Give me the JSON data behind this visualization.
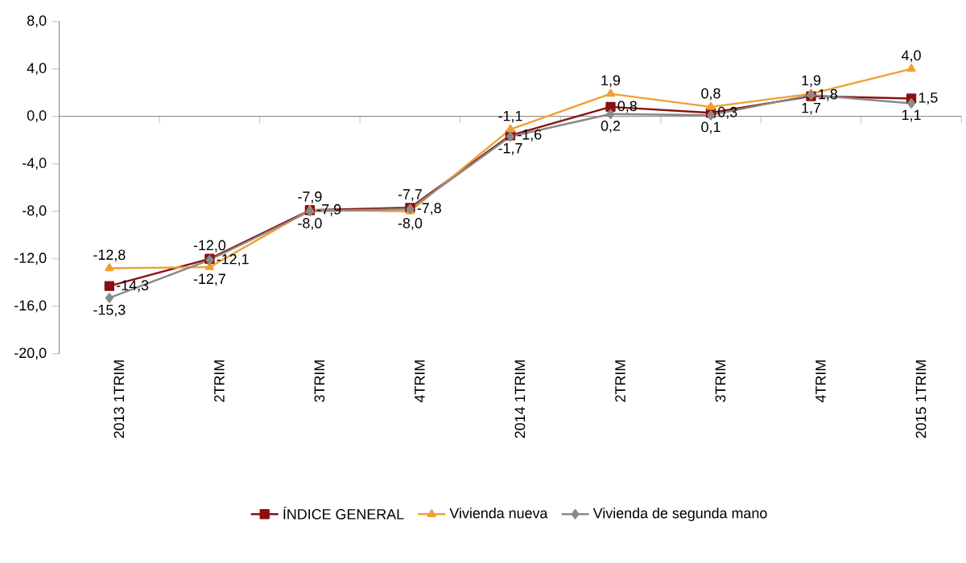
{
  "chart_data": {
    "type": "line",
    "categories": [
      "2013 1TRIM",
      "2TRIM",
      "3TRIM",
      "4TRIM",
      "2014 1TRIM",
      "2TRIM",
      "3TRIM",
      "4TRIM",
      "2015 1TRIM"
    ],
    "series": [
      {
        "name": "ÍNDICE GENERAL",
        "color": "#8b1010",
        "marker": "square",
        "values": [
          -14.3,
          -12.0,
          -7.9,
          -7.7,
          -1.6,
          0.8,
          0.3,
          1.7,
          1.5
        ],
        "value_labels": [
          "-14,3",
          "-12,0",
          "-7,9",
          "-7,7",
          "-1,6",
          "0,8",
          "0,3",
          "1,7",
          "1,5"
        ]
      },
      {
        "name": "Vivienda nueva",
        "color": "#f0a030",
        "marker": "triangle",
        "values": [
          -12.8,
          -12.7,
          -7.9,
          -8.0,
          -1.1,
          1.9,
          0.8,
          1.9,
          4.0
        ],
        "value_labels": [
          "-12,8",
          "-12,7",
          "-7,9",
          "-8,0",
          "-1,1",
          "1,9",
          "0,8",
          "1,9",
          "4,0"
        ]
      },
      {
        "name": "Vivienda de segunda mano",
        "color": "#8a8a8a",
        "marker": "diamond",
        "values": [
          -15.3,
          -12.1,
          -8.0,
          -7.8,
          -1.7,
          0.2,
          0.1,
          1.8,
          1.1
        ],
        "value_labels": [
          "-15,3",
          "-12,1",
          "-8,0",
          "-7,8",
          "-1,7",
          "0,2",
          "0,1",
          "1,8",
          "1,1"
        ]
      }
    ],
    "ylim": [
      -20,
      8
    ],
    "yticks": [
      {
        "value": -20,
        "label": "-20,0"
      },
      {
        "value": -16,
        "label": "-16,0"
      },
      {
        "value": -12,
        "label": "-12,0"
      },
      {
        "value": -8,
        "label": "-8,0"
      },
      {
        "value": -4,
        "label": "-4,0"
      },
      {
        "value": 0,
        "label": "0,0"
      },
      {
        "value": 4,
        "label": "4,0"
      },
      {
        "value": 8,
        "label": "8,0"
      }
    ],
    "legend": "bottom"
  }
}
